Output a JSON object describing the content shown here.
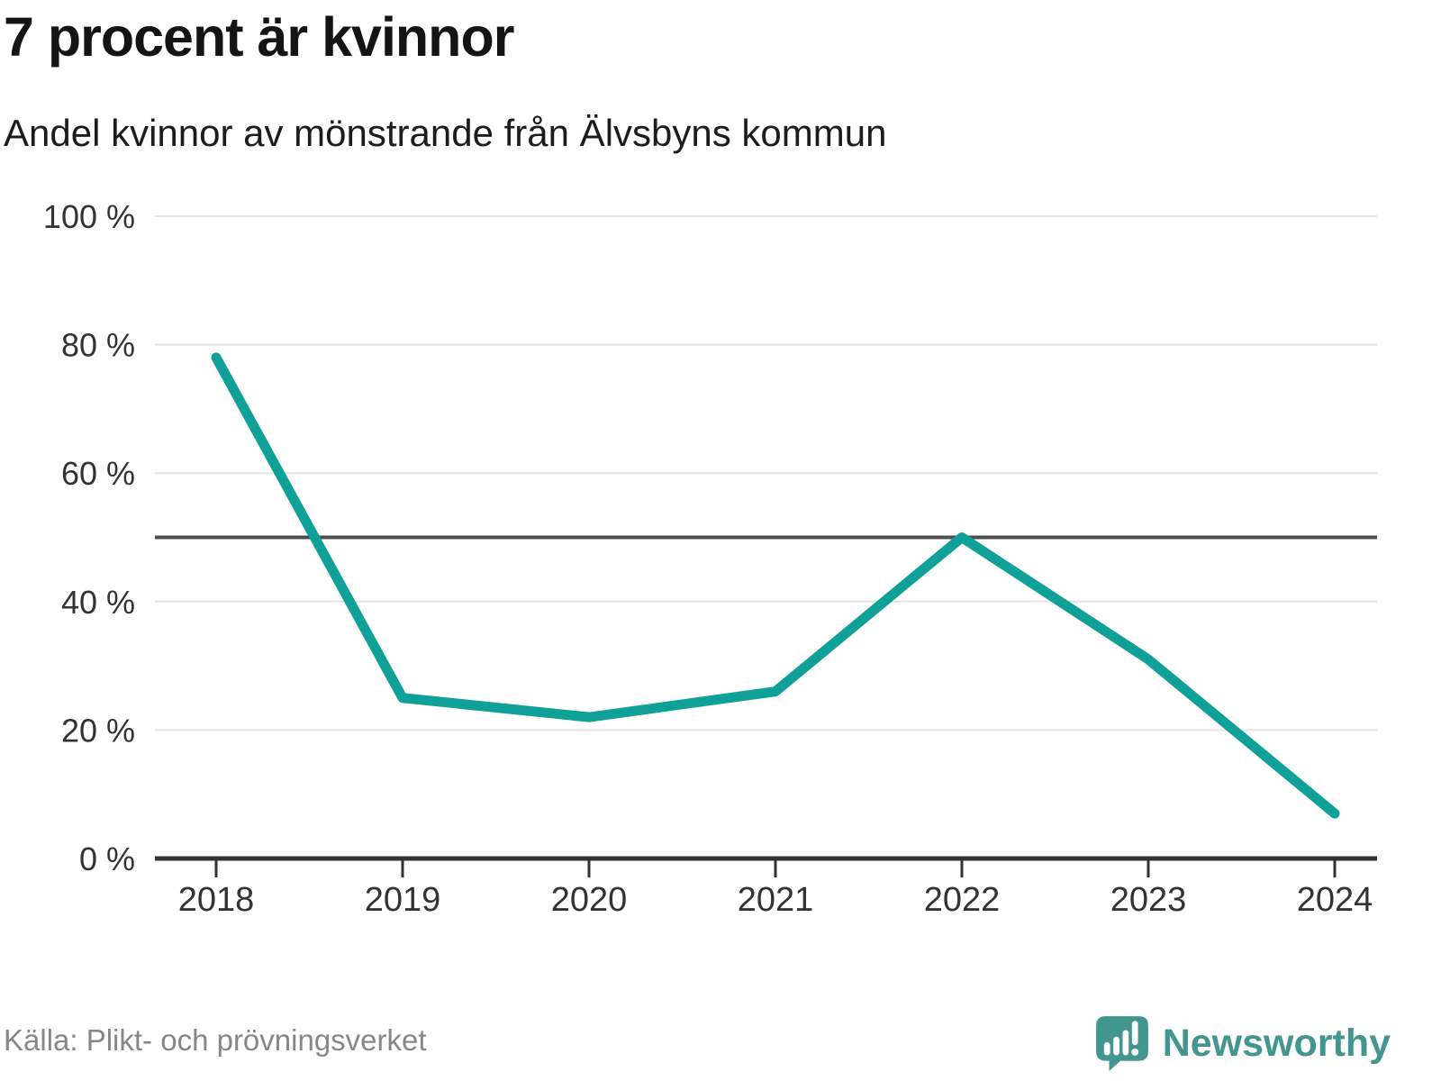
{
  "header": {
    "title": "7 procent är kvinnor",
    "subtitle": "Andel kvinnor av mönstrande från Älvsbyns kommun"
  },
  "chart_data": {
    "type": "line",
    "title": "7 procent är kvinnor",
    "subtitle": "Andel kvinnor av mönstrande från Älvsbyns kommun",
    "x": [
      "2018",
      "2019",
      "2020",
      "2021",
      "2022",
      "2023",
      "2024"
    ],
    "series": [
      {
        "name": "Andel kvinnor av mönstrande",
        "values": [
          78,
          25,
          22,
          26,
          50,
          31,
          7
        ]
      }
    ],
    "unit": "%",
    "ylim": [
      0,
      100
    ],
    "yticks": [
      0,
      20,
      40,
      60,
      80,
      100
    ],
    "ytick_labels": [
      "0 %",
      "20 %",
      "40 %",
      "60 %",
      "80 %",
      "100 %"
    ],
    "xlabel": "",
    "ylabel": "",
    "reference_line": {
      "value": 50
    },
    "grid": true,
    "legend": "none"
  },
  "footer": {
    "source": "Källa: Plikt- och prövningsverket",
    "brand": "Newsworthy"
  },
  "colors": {
    "line": "#0fa198",
    "grid": "#e3e3e3",
    "reference_line": "#4d4d4d",
    "axis": "#333333",
    "tick_label": "#333333",
    "title_text": "#141414",
    "source_text": "#878787",
    "brand_teal": "#42968f"
  }
}
